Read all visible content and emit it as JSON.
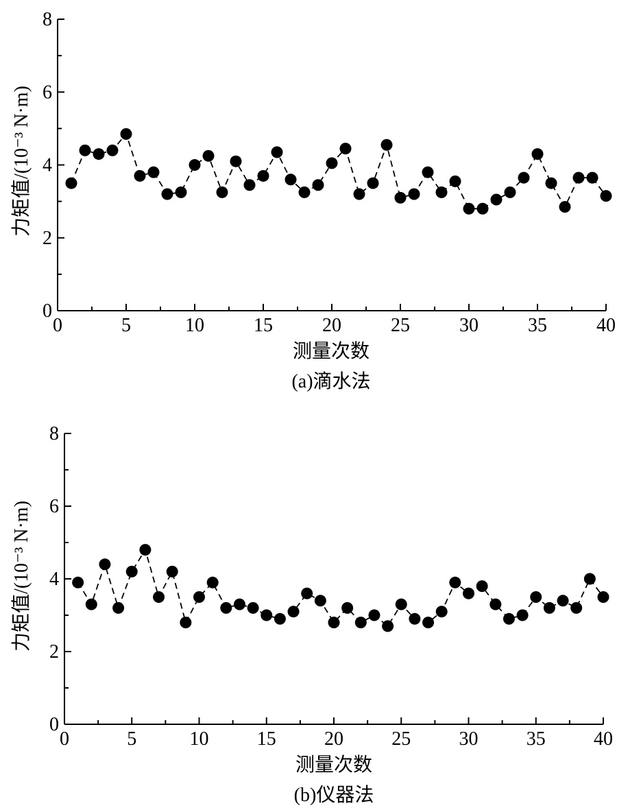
{
  "chart_data": [
    {
      "type": "scatter",
      "line_style": "dashed",
      "marker": "filled-circle",
      "subtitle": "(a)滴水法",
      "xlabel": "测量次数",
      "ylabel": "力矩值/(10⁻³ N·m)",
      "xlim": [
        0,
        40
      ],
      "ylim": [
        0,
        8
      ],
      "x_ticks": [
        "0",
        "5",
        "10",
        "15",
        "20",
        "25",
        "30",
        "35",
        "40"
      ],
      "y_ticks": [
        "0",
        "2",
        "4",
        "6",
        "8"
      ],
      "x": [
        1,
        2,
        3,
        4,
        5,
        6,
        7,
        8,
        9,
        10,
        11,
        12,
        13,
        14,
        15,
        16,
        17,
        18,
        19,
        20,
        21,
        22,
        23,
        24,
        25,
        26,
        27,
        28,
        29,
        30,
        31,
        32,
        33,
        34,
        35,
        36,
        37,
        38,
        39,
        40
      ],
      "values": [
        3.5,
        4.4,
        4.3,
        4.4,
        4.85,
        3.7,
        3.8,
        3.2,
        3.25,
        4.0,
        4.25,
        3.25,
        4.1,
        3.45,
        3.7,
        4.35,
        3.6,
        3.25,
        3.45,
        4.05,
        4.45,
        3.2,
        3.5,
        4.55,
        3.1,
        3.2,
        3.8,
        3.25,
        3.55,
        2.8,
        2.8,
        3.05,
        3.25,
        3.65,
        4.3,
        3.5,
        2.85,
        3.65,
        3.65,
        3.15
      ]
    },
    {
      "type": "scatter",
      "line_style": "dashed",
      "marker": "filled-circle",
      "subtitle": "(b)仪器法",
      "xlabel": "测量次数",
      "ylabel": "力矩值/(10⁻³ N·m)",
      "xlim": [
        0,
        40
      ],
      "ylim": [
        0,
        8
      ],
      "x_ticks": [
        "0",
        "5",
        "10",
        "15",
        "20",
        "25",
        "30",
        "35",
        "40"
      ],
      "y_ticks": [
        "0",
        "2",
        "4",
        "6",
        "8"
      ],
      "x": [
        1,
        2,
        3,
        4,
        5,
        6,
        7,
        8,
        9,
        10,
        11,
        12,
        13,
        14,
        15,
        16,
        17,
        18,
        19,
        20,
        21,
        22,
        23,
        24,
        25,
        26,
        27,
        28,
        29,
        30,
        31,
        32,
        33,
        34,
        35,
        36,
        37,
        38,
        39,
        40
      ],
      "values": [
        3.9,
        3.3,
        4.4,
        3.2,
        4.2,
        4.8,
        3.5,
        4.2,
        2.8,
        3.5,
        3.9,
        3.2,
        3.3,
        3.2,
        3.0,
        2.9,
        3.1,
        3.6,
        3.4,
        2.8,
        3.2,
        2.8,
        3.0,
        2.7,
        3.3,
        2.9,
        2.8,
        3.1,
        3.9,
        3.6,
        3.8,
        3.3,
        2.9,
        3.0,
        3.5,
        3.2,
        3.4,
        3.2,
        4.0,
        3.5
      ]
    }
  ]
}
